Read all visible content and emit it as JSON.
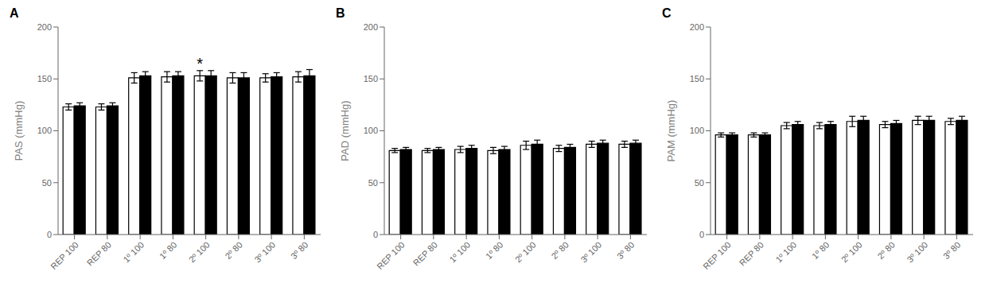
{
  "chart_data": [
    {
      "type": "bar",
      "title": "A",
      "ylabel": "PAS (mmHg)",
      "categories": [
        "REP 100",
        "REP 80",
        "1º 100",
        "1º 80",
        "2º 100",
        "2º 80",
        "3º 100",
        "3º 80"
      ],
      "series": [
        {
          "color": "#ffffff",
          "values": [
            123,
            123,
            151,
            152,
            153,
            151,
            151,
            152
          ],
          "errors": [
            3,
            3,
            5,
            5,
            5,
            5,
            4,
            5
          ]
        },
        {
          "color": "#000000",
          "values": [
            124,
            124,
            153,
            153,
            153,
            151,
            152,
            153
          ],
          "errors": [
            3,
            3,
            4,
            4,
            5,
            5,
            4,
            6
          ]
        }
      ],
      "ylim": [
        0,
        200
      ],
      "yticks": [
        0,
        50,
        100,
        150,
        200
      ],
      "grid": false,
      "annotations": [
        {
          "text": "*",
          "category": "2º 100",
          "series": 0
        }
      ]
    },
    {
      "type": "bar",
      "title": "B",
      "ylabel": "PAD (mmHg)",
      "categories": [
        "REP 100",
        "REP 80",
        "1º 100",
        "1º 80",
        "2º 100",
        "2º 80",
        "3º 100",
        "3º 80"
      ],
      "series": [
        {
          "color": "#ffffff",
          "values": [
            81,
            81,
            82,
            81,
            86,
            83,
            87,
            87
          ],
          "errors": [
            2,
            2,
            3,
            3,
            4,
            3,
            3,
            3
          ]
        },
        {
          "color": "#000000",
          "values": [
            82,
            82,
            83,
            82,
            87,
            84,
            88,
            88
          ],
          "errors": [
            2,
            2,
            3,
            3,
            4,
            3,
            3,
            3
          ]
        }
      ],
      "ylim": [
        0,
        200
      ],
      "yticks": [
        0,
        50,
        100,
        150,
        200
      ],
      "grid": false
    },
    {
      "type": "bar",
      "title": "C",
      "ylabel": "PAM (mmHg)",
      "categories": [
        "REP 100",
        "REP 80",
        "1º 100",
        "1º 80",
        "2º 100",
        "2º 80",
        "3º 100",
        "3º 80"
      ],
      "series": [
        {
          "color": "#ffffff",
          "values": [
            96,
            96,
            105,
            105,
            109,
            106,
            110,
            109
          ],
          "errors": [
            2,
            2,
            3,
            3,
            5,
            3,
            4,
            3
          ]
        },
        {
          "color": "#000000",
          "values": [
            96,
            96,
            106,
            106,
            110,
            107,
            110,
            110
          ],
          "errors": [
            2,
            2,
            3,
            3,
            4,
            3,
            4,
            4
          ]
        }
      ],
      "ylim": [
        0,
        200
      ],
      "yticks": [
        0,
        50,
        100,
        150,
        200
      ],
      "grid": false
    }
  ]
}
